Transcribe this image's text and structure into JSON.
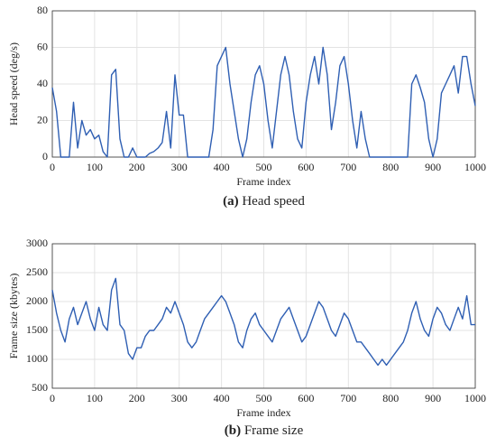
{
  "chart_data": [
    {
      "type": "line",
      "xlabel": "Frame index",
      "ylabel": "Head speed (deg/s)",
      "caption_label": "(a)",
      "caption": "Head speed",
      "xlim": [
        0,
        1000
      ],
      "ylim": [
        0,
        80
      ],
      "xticks": [
        0,
        100,
        200,
        300,
        400,
        500,
        600,
        700,
        800,
        900,
        1000
      ],
      "yticks": [
        0,
        20,
        40,
        60,
        80
      ],
      "grid": true,
      "x": [
        0,
        10,
        20,
        30,
        40,
        50,
        60,
        70,
        80,
        90,
        100,
        110,
        120,
        130,
        140,
        150,
        160,
        170,
        180,
        190,
        200,
        210,
        220,
        230,
        240,
        250,
        260,
        270,
        280,
        290,
        300,
        310,
        320,
        330,
        340,
        350,
        360,
        370,
        380,
        390,
        400,
        410,
        420,
        430,
        440,
        450,
        460,
        470,
        480,
        490,
        500,
        510,
        520,
        530,
        540,
        550,
        560,
        570,
        580,
        590,
        600,
        610,
        620,
        630,
        640,
        650,
        660,
        670,
        680,
        690,
        700,
        710,
        720,
        730,
        740,
        750,
        760,
        770,
        780,
        790,
        800,
        810,
        820,
        830,
        840,
        850,
        860,
        870,
        880,
        890,
        900,
        910,
        920,
        930,
        940,
        950,
        960,
        970,
        980,
        990,
        1000
      ],
      "series": [
        {
          "name": "Head speed",
          "color": "#2f5fb3",
          "values": [
            38,
            25,
            0,
            0,
            0,
            30,
            5,
            20,
            12,
            15,
            10,
            12,
            3,
            0,
            45,
            48,
            10,
            0,
            0,
            5,
            0,
            0,
            0,
            2,
            3,
            5,
            8,
            25,
            5,
            45,
            23,
            23,
            0,
            0,
            0,
            0,
            0,
            0,
            15,
            50,
            55,
            60,
            40,
            25,
            10,
            0,
            10,
            30,
            45,
            50,
            40,
            20,
            5,
            25,
            45,
            55,
            45,
            25,
            10,
            5,
            30,
            45,
            55,
            40,
            60,
            45,
            15,
            30,
            50,
            55,
            40,
            20,
            5,
            25,
            10,
            0,
            0,
            0,
            0,
            0,
            0,
            0,
            0,
            0,
            0,
            40,
            45,
            38,
            30,
            10,
            0,
            10,
            35,
            40,
            45,
            50,
            35,
            55,
            55,
            40,
            28
          ]
        }
      ]
    },
    {
      "type": "line",
      "xlabel": "Frame index",
      "ylabel": "Frame size (kbytes)",
      "caption_label": "(b)",
      "caption": "Frame size",
      "xlim": [
        0,
        1000
      ],
      "ylim": [
        500,
        3000
      ],
      "xticks": [
        0,
        100,
        200,
        300,
        400,
        500,
        600,
        700,
        800,
        900,
        1000
      ],
      "yticks": [
        500,
        1000,
        1500,
        2000,
        2500,
        3000
      ],
      "grid": true,
      "x": [
        0,
        10,
        20,
        30,
        40,
        50,
        60,
        70,
        80,
        90,
        100,
        110,
        120,
        130,
        140,
        150,
        160,
        170,
        180,
        190,
        200,
        210,
        220,
        230,
        240,
        250,
        260,
        270,
        280,
        290,
        300,
        310,
        320,
        330,
        340,
        350,
        360,
        370,
        380,
        390,
        400,
        410,
        420,
        430,
        440,
        450,
        460,
        470,
        480,
        490,
        500,
        510,
        520,
        530,
        540,
        550,
        560,
        570,
        580,
        590,
        600,
        610,
        620,
        630,
        640,
        650,
        660,
        670,
        680,
        690,
        700,
        710,
        720,
        730,
        740,
        750,
        760,
        770,
        780,
        790,
        800,
        810,
        820,
        830,
        840,
        850,
        860,
        870,
        880,
        890,
        900,
        910,
        920,
        930,
        940,
        950,
        960,
        970,
        980,
        990,
        1000
      ],
      "series": [
        {
          "name": "Frame size",
          "color": "#2f5fb3",
          "values": [
            2200,
            1800,
            1500,
            1300,
            1700,
            1900,
            1600,
            1800,
            2000,
            1700,
            1500,
            1900,
            1600,
            1500,
            2200,
            2400,
            1600,
            1500,
            1100,
            1000,
            1200,
            1200,
            1400,
            1500,
            1500,
            1600,
            1700,
            1900,
            1800,
            2000,
            1800,
            1600,
            1300,
            1200,
            1300,
            1500,
            1700,
            1800,
            1900,
            2000,
            2100,
            2000,
            1800,
            1600,
            1300,
            1200,
            1500,
            1700,
            1800,
            1600,
            1500,
            1400,
            1300,
            1500,
            1700,
            1800,
            1900,
            1700,
            1500,
            1300,
            1400,
            1600,
            1800,
            2000,
            1900,
            1700,
            1500,
            1400,
            1600,
            1800,
            1700,
            1500,
            1300,
            1300,
            1200,
            1100,
            1000,
            900,
            1000,
            900,
            1000,
            1100,
            1200,
            1300,
            1500,
            1800,
            2000,
            1700,
            1500,
            1400,
            1700,
            1900,
            1800,
            1600,
            1500,
            1700,
            1900,
            1700,
            2100,
            1600,
            1600
          ]
        }
      ]
    }
  ]
}
